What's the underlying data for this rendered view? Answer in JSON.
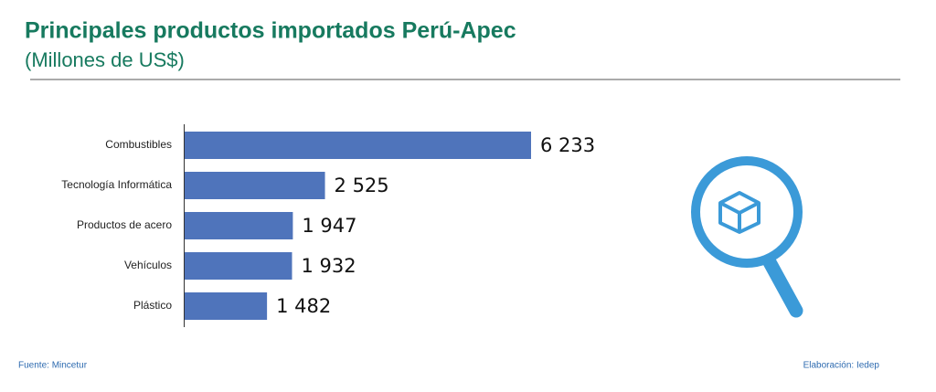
{
  "chart_data": {
    "type": "bar",
    "orientation": "horizontal",
    "title": "Principales productos importados Perú-Apec",
    "subtitle": "(Millones de US$)",
    "categories": [
      "Combustibles",
      "Tecnología Informática",
      "Productos de acero",
      "Vehículos",
      "Plástico"
    ],
    "values": [
      6233,
      2525,
      1947,
      1932,
      1482
    ],
    "value_labels": [
      "6 233",
      "2 525",
      "1 947",
      "1 932",
      "1 482"
    ],
    "color": "#4f74bb",
    "source": "Fuente: Mincetur",
    "credit": "Elaboración: Iedep"
  }
}
